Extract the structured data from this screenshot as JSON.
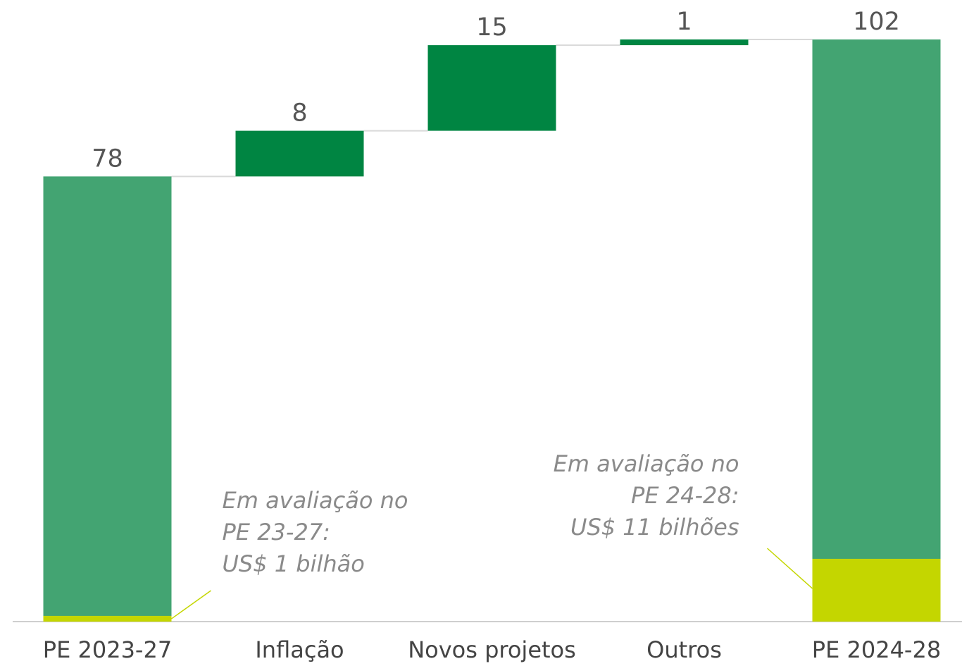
{
  "chart_data": {
    "type": "waterfall",
    "categories": [
      "PE 2023-27",
      "Inflação",
      "Novos projetos",
      "Outros",
      "PE 2024-28"
    ],
    "values": [
      78,
      8,
      15,
      1,
      102
    ],
    "total_color": "#43a472",
    "delta_color": "#008542",
    "highlight": {
      "color": "#c4d600",
      "values": [
        1,
        null,
        null,
        null,
        11
      ]
    },
    "annotations": [
      {
        "lines": [
          "Em avaliação no",
          "PE 23-27:",
          "US$ 1 bilhão"
        ],
        "bar": 0,
        "align": "left"
      },
      {
        "lines": [
          "Em avaliação no",
          "PE 24-28:",
          "US$ 11 bilhões"
        ],
        "bar": 4,
        "align": "right"
      }
    ]
  }
}
